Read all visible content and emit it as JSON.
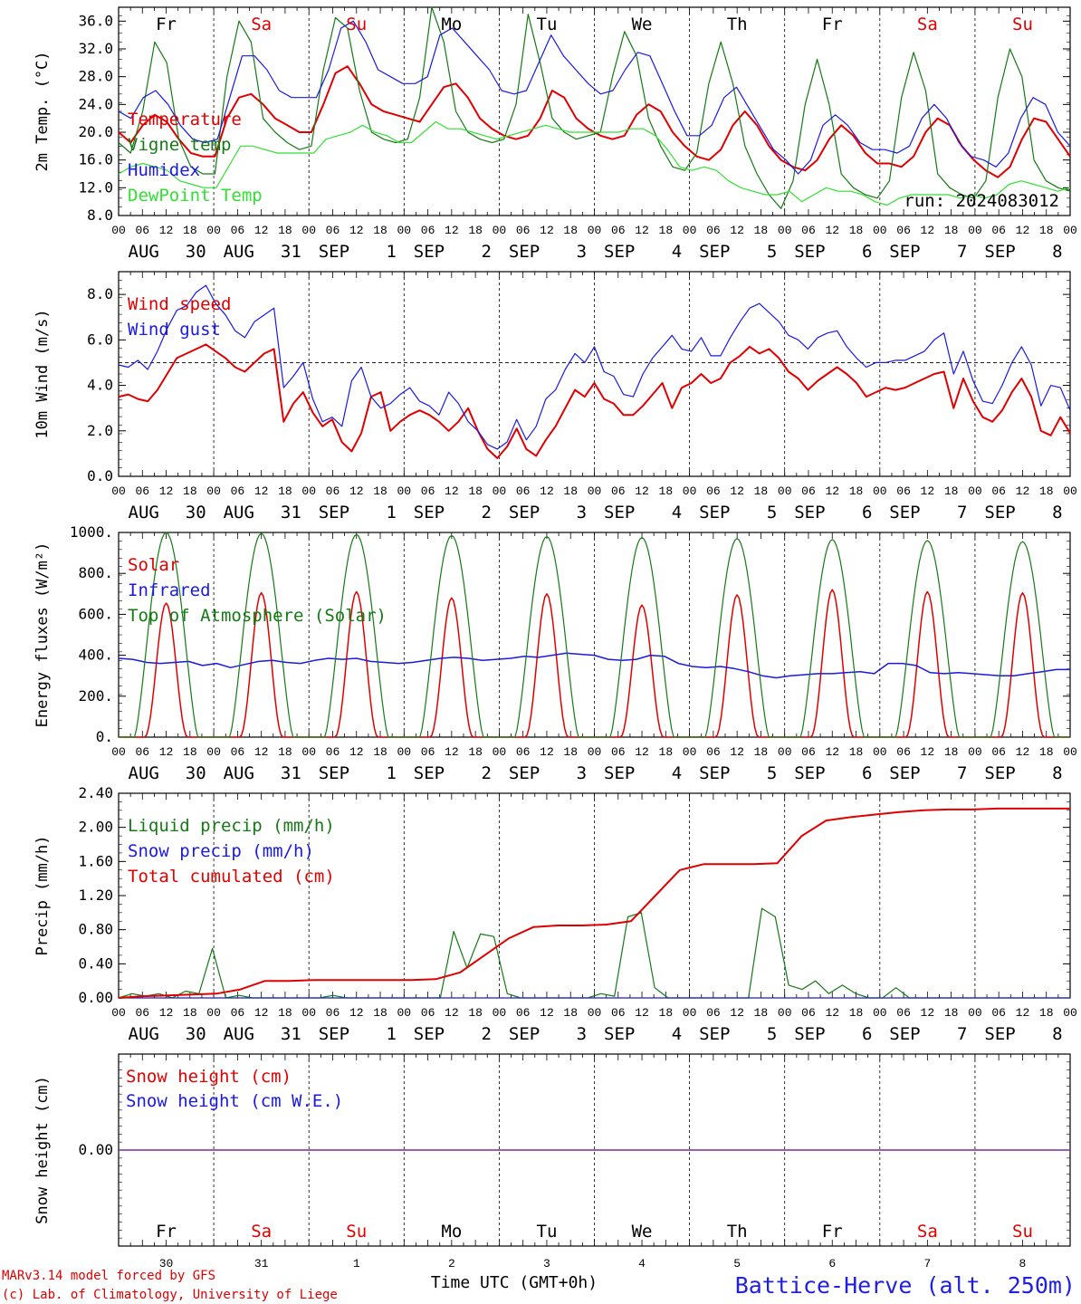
{
  "colors": {
    "red": "#e00000",
    "green": "#157a15",
    "blue": "#1a1ae0",
    "light_green": "#33e033",
    "purple": "#7a2a9a",
    "black": "#000000",
    "station": "#2020e0"
  },
  "axis": {
    "x_hours": [
      "00",
      "06",
      "12",
      "18"
    ],
    "x_end_hour": "00",
    "dates": [
      {
        "m": "AUG",
        "d": "30"
      },
      {
        "m": "AUG",
        "d": "31"
      },
      {
        "m": "SEP",
        "d": "1"
      },
      {
        "m": "SEP",
        "d": "2"
      },
      {
        "m": "SEP",
        "d": "3"
      },
      {
        "m": "SEP",
        "d": "4"
      },
      {
        "m": "SEP",
        "d": "5"
      },
      {
        "m": "SEP",
        "d": "6"
      },
      {
        "m": "SEP",
        "d": "7"
      },
      {
        "m": "SEP",
        "d": "8"
      }
    ],
    "weekdays": [
      {
        "t": "Fr",
        "weekend": false
      },
      {
        "t": "Sa",
        "weekend": true
      },
      {
        "t": "Su",
        "weekend": true
      },
      {
        "t": "Mo",
        "weekend": false
      },
      {
        "t": "Tu",
        "weekend": false
      },
      {
        "t": "We",
        "weekend": false
      },
      {
        "t": "Th",
        "weekend": false
      },
      {
        "t": "Fr",
        "weekend": false
      },
      {
        "t": "Sa",
        "weekend": true
      },
      {
        "t": "Su",
        "weekend": true
      }
    ],
    "bottom_day_numbers": [
      "30",
      "31",
      "1",
      "2",
      "3",
      "4",
      "5",
      "6",
      "7",
      "8"
    ]
  },
  "chart_data": [
    {
      "type": "line",
      "ylabel": "2m Temp. (°C)",
      "ylim": [
        8,
        38
      ],
      "ticks": [
        "36.0",
        "32.0",
        "28.0",
        "24.0",
        "20.0",
        "16.0",
        "12.0",
        "8.0"
      ],
      "tick_values": [
        36,
        32,
        28,
        24,
        20,
        16,
        12,
        8
      ],
      "annotation": "run: 2024083012",
      "show_weekdays": true,
      "series": [
        {
          "name": "Temperature",
          "color_key": "red",
          "width": 2,
          "values": [
            20,
            18.5,
            21,
            22.5,
            21.5,
            19,
            17,
            16.5,
            16.5,
            22,
            25,
            25.5,
            24,
            22,
            21,
            20,
            20,
            24,
            28.5,
            29.5,
            27,
            24,
            23,
            22.5,
            22,
            21.5,
            24,
            26.5,
            27,
            25,
            22,
            20.5,
            19.5,
            19,
            19.5,
            22,
            26,
            25,
            22,
            20.5,
            19.5,
            19,
            19.5,
            22.5,
            24,
            23,
            20,
            18,
            16.5,
            16,
            17.5,
            21,
            23,
            21,
            18,
            16,
            15,
            14.5,
            16,
            19,
            21,
            19.5,
            17,
            15.5,
            15.5,
            15,
            16.5,
            20,
            22,
            21,
            18,
            16,
            14.5,
            13.5,
            15,
            19,
            22,
            21.5,
            19,
            16.5
          ]
        },
        {
          "name": "Vigne temp",
          "color_key": "green",
          "width": 1.2,
          "values": [
            18.5,
            17,
            23,
            33,
            30,
            19,
            15,
            14,
            14,
            28,
            36,
            33,
            22,
            20,
            18.5,
            17.5,
            18,
            29,
            36.5,
            35,
            26,
            20,
            19,
            18.5,
            19,
            25,
            38,
            33,
            23,
            20,
            19,
            18.5,
            19,
            24,
            37,
            30,
            22,
            20,
            19,
            19.5,
            20,
            28,
            34.5,
            31,
            22,
            18,
            15,
            14.5,
            17,
            27,
            33,
            27,
            18,
            14,
            11,
            9,
            13,
            24,
            30.5,
            24,
            14,
            12,
            11,
            10.5,
            13,
            25,
            31.5,
            26,
            14,
            12,
            11,
            10.5,
            13,
            25,
            32,
            28,
            16,
            13,
            12,
            11.5
          ]
        },
        {
          "name": "Humidex",
          "color_key": "blue",
          "width": 1.2,
          "values": [
            23,
            22,
            25,
            26,
            24,
            21,
            19,
            18.5,
            19,
            25,
            31,
            31,
            29,
            26,
            25,
            25,
            25,
            29,
            35,
            36,
            33,
            29,
            28,
            27,
            27,
            28,
            34,
            35,
            33,
            31,
            29,
            26,
            25.5,
            26,
            30,
            34,
            31,
            29,
            27,
            25.5,
            26,
            29,
            31.5,
            31,
            27,
            23,
            19.5,
            19.5,
            21,
            25,
            26.5,
            23.5,
            20.5,
            17.5,
            16,
            14,
            16,
            21,
            22.5,
            21,
            18.5,
            17.5,
            17.5,
            17,
            18,
            22,
            24,
            22,
            18.5,
            16.5,
            16,
            15,
            17,
            22,
            25,
            24,
            20,
            18
          ]
        },
        {
          "name": "DewPoint Temp",
          "color_key": "light_green",
          "width": 1.2,
          "values": [
            14,
            15,
            15.5,
            15,
            14.5,
            13,
            12.5,
            12,
            12,
            15,
            18,
            18,
            17.5,
            17,
            17,
            17,
            17,
            19,
            19.5,
            20,
            21,
            20,
            19.5,
            18.5,
            18.5,
            20,
            21.5,
            20.5,
            20.5,
            20,
            19.5,
            19,
            19.5,
            20,
            20.5,
            21,
            20.5,
            20,
            20,
            20,
            20,
            20,
            20.5,
            20.5,
            19.5,
            17.5,
            15,
            14.5,
            15,
            14.5,
            13,
            12,
            11.5,
            11,
            11,
            11.5,
            10,
            11,
            12,
            11.5,
            11.5,
            11,
            10,
            9.5,
            10.5,
            11,
            11,
            11,
            11,
            10.5,
            11,
            10.5,
            11,
            12.5,
            13,
            12.5,
            12,
            11.5,
            12
          ]
        }
      ],
      "legend": [
        "Temperature",
        "Vigne temp",
        "Humidex",
        "DewPoint Temp"
      ]
    },
    {
      "type": "line",
      "ylabel": "10m Wind (m/s)",
      "ylim": [
        0,
        9
      ],
      "ticks": [
        "8.0",
        "6.0",
        "4.0",
        "2.0",
        "0.0"
      ],
      "tick_values": [
        8,
        6,
        4,
        2,
        0
      ],
      "reference_line": 5,
      "series": [
        {
          "name": "Wind speed",
          "color_key": "red",
          "width": 2,
          "values": [
            3.5,
            3.6,
            3.4,
            3.3,
            3.8,
            4.5,
            5.2,
            5.4,
            5.6,
            5.8,
            5.5,
            5.2,
            4.8,
            4.6,
            5.0,
            5.4,
            5.6,
            2.4,
            3.2,
            3.7,
            2.8,
            2.2,
            2.5,
            1.5,
            1.1,
            1.9,
            3.5,
            3.7,
            2.0,
            2.4,
            2.7,
            2.9,
            2.7,
            2.4,
            2.0,
            2.4,
            3.0,
            2.0,
            1.2,
            0.8,
            1.3,
            2.1,
            1.2,
            0.9,
            1.6,
            2.2,
            3.0,
            3.8,
            3.5,
            4.1,
            3.4,
            3.2,
            2.7,
            2.7,
            3.1,
            3.6,
            4.1,
            3.0,
            3.9,
            4.1,
            4.5,
            4.1,
            4.3,
            5.0,
            5.3,
            5.7,
            5.4,
            5.6,
            5.2,
            4.6,
            4.3,
            3.8,
            4.2,
            4.5,
            4.8,
            4.5,
            4.1,
            3.5,
            3.7,
            3.9,
            3.8,
            3.9,
            4.1,
            4.3,
            4.5,
            4.6,
            3.0,
            4.3,
            3.3,
            2.6,
            2.4,
            2.9,
            3.7,
            4.3,
            3.5,
            2.0,
            1.8,
            2.6,
            1.9
          ]
        },
        {
          "name": "Wind gust",
          "color_key": "blue",
          "width": 1.2,
          "values": [
            4.9,
            4.8,
            5.1,
            4.7,
            5.5,
            6.5,
            7.3,
            7.5,
            8.1,
            8.4,
            7.6,
            7.1,
            6.4,
            6.1,
            6.8,
            7.1,
            7.4,
            3.9,
            4.4,
            5.0,
            3.4,
            2.4,
            2.6,
            2.2,
            4.2,
            4.8,
            3.5,
            3.0,
            3.2,
            3.6,
            3.9,
            3.3,
            3.1,
            2.7,
            3.7,
            3.2,
            2.4,
            2.0,
            1.4,
            1.2,
            1.5,
            2.5,
            1.6,
            2.2,
            3.4,
            3.8,
            4.7,
            5.4,
            5.0,
            5.7,
            4.6,
            4.4,
            3.6,
            3.5,
            4.5,
            5.2,
            5.7,
            6.2,
            5.6,
            5.5,
            6.1,
            5.3,
            5.3,
            6.1,
            6.8,
            7.4,
            7.6,
            7.2,
            6.8,
            6.2,
            6.0,
            5.6,
            6.1,
            6.3,
            6.4,
            5.7,
            5.2,
            4.8,
            5.0,
            5.0,
            5.1,
            5.1,
            5.3,
            5.5,
            6.0,
            6.3,
            4.5,
            5.5,
            4.2,
            3.3,
            3.2,
            4.0,
            5.0,
            5.7,
            4.9,
            3.1,
            4.0,
            3.9,
            2.9
          ]
        }
      ],
      "legend": [
        "Wind speed",
        "Wind gust"
      ]
    },
    {
      "type": "line",
      "ylabel": "Energy fluxes (W/m²)",
      "ylim": [
        0,
        1000
      ],
      "ticks": [
        "1000.",
        "800.",
        "600.",
        "400.",
        "200.",
        "0."
      ],
      "tick_values": [
        1000,
        800,
        600,
        400,
        200,
        0
      ],
      "series": [
        {
          "name": "Solar",
          "color_key": "red",
          "width": 1.5,
          "day_peaks": [
            655,
            705,
            710,
            680,
            700,
            645,
            695,
            720,
            710,
            705
          ],
          "values": [
            0,
            0,
            0,
            0,
            0,
            0,
            0,
            0,
            0,
            0
          ]
        },
        {
          "name": "Infrared",
          "color_key": "blue",
          "width": 1.5,
          "values": [
            385,
            380,
            365,
            360,
            365,
            370,
            350,
            360,
            340,
            355,
            370,
            375,
            365,
            360,
            375,
            385,
            380,
            385,
            370,
            365,
            360,
            365,
            375,
            385,
            390,
            385,
            375,
            380,
            385,
            395,
            390,
            400,
            410,
            405,
            400,
            380,
            375,
            380,
            400,
            395,
            360,
            345,
            340,
            345,
            335,
            320,
            300,
            290,
            300,
            305,
            310,
            310,
            315,
            320,
            310,
            360,
            360,
            350,
            315,
            310,
            315,
            310,
            305,
            300,
            300,
            310,
            320,
            330,
            330
          ]
        },
        {
          "name": "Top of Atmosphere (Solar)",
          "color_key": "green",
          "width": 1.2,
          "day_peaks": [
            1000,
            995,
            990,
            985,
            980,
            975,
            970,
            965,
            960,
            955
          ],
          "values": [
            0,
            0,
            0,
            0,
            0,
            0,
            0,
            0,
            0,
            0
          ]
        }
      ],
      "legend": [
        "Solar",
        "Infrared",
        "Top of Atmosphere (Solar)"
      ]
    },
    {
      "type": "line",
      "ylabel": "Precip (mm/h)",
      "ylim": [
        0,
        2.4
      ],
      "ticks": [
        "2.40",
        "2.00",
        "1.60",
        "1.20",
        "0.80",
        "0.40",
        "0.00"
      ],
      "tick_values": [
        2.4,
        2.0,
        1.6,
        1.2,
        0.8,
        0.4,
        0.0
      ],
      "series": [
        {
          "name": "Liquid precip (mm/h)",
          "color_key": "green",
          "width": 1.2,
          "values": [
            0,
            0.05,
            0.02,
            0.05,
            0,
            0.08,
            0.05,
            0.58,
            0,
            0.03,
            0,
            0,
            0,
            0,
            0,
            0,
            0.03,
            0,
            0,
            0,
            0,
            0,
            0,
            0,
            0,
            0.78,
            0.35,
            0.75,
            0.72,
            0.05,
            0,
            0,
            0,
            0,
            0,
            0,
            0.05,
            0.02,
            0.95,
            1.0,
            0.12,
            0,
            0,
            0,
            0,
            0,
            0,
            0,
            1.05,
            0.95,
            0.15,
            0.1,
            0.2,
            0.05,
            0.15,
            0.05,
            0,
            0,
            0.12,
            0,
            0,
            0,
            0,
            0,
            0,
            0,
            0,
            0,
            0,
            0,
            0,
            0
          ]
        },
        {
          "name": "Snow precip (mm/h)",
          "color_key": "blue",
          "width": 1,
          "values": [
            0,
            0
          ]
        },
        {
          "name": "Total cumulated (cm)",
          "color_key": "red",
          "width": 2,
          "values": [
            0,
            0.02,
            0.03,
            0.04,
            0.05,
            0.1,
            0.2,
            0.2,
            0.21,
            0.21,
            0.21,
            0.21,
            0.21,
            0.22,
            0.3,
            0.5,
            0.7,
            0.83,
            0.85,
            0.85,
            0.86,
            0.9,
            1.2,
            1.5,
            1.57,
            1.57,
            1.57,
            1.58,
            1.9,
            2.08,
            2.12,
            2.15,
            2.18,
            2.2,
            2.21,
            2.21,
            2.22,
            2.22,
            2.22,
            2.22
          ]
        }
      ],
      "legend": [
        "Liquid precip (mm/h)",
        "Snow precip (mm/h)",
        "Total cumulated (cm)"
      ]
    },
    {
      "type": "line",
      "ylabel": "Snow height (cm)",
      "ylim": [
        -1,
        1
      ],
      "ticks": [
        "0.00"
      ],
      "tick_values": [
        0
      ],
      "series": [
        {
          "name": "Snow height (cm)",
          "color_key": "red",
          "width": 1,
          "values": [
            0,
            0
          ]
        },
        {
          "name": "Snow height (cm W.E.)",
          "color_key": "blue",
          "width": 1,
          "values": [
            0,
            0
          ]
        }
      ],
      "legend": [
        "Snow height (cm)",
        "Snow height (cm W.E.)"
      ]
    }
  ],
  "footer": {
    "model_line": "MARv3.14 model forced by GFS",
    "copyright_line": "(c) Lab. of Climatology, University of Liege",
    "xlabel": "Time UTC (GMT+0h)",
    "station": "Battice-Herve (alt. 250m)"
  }
}
